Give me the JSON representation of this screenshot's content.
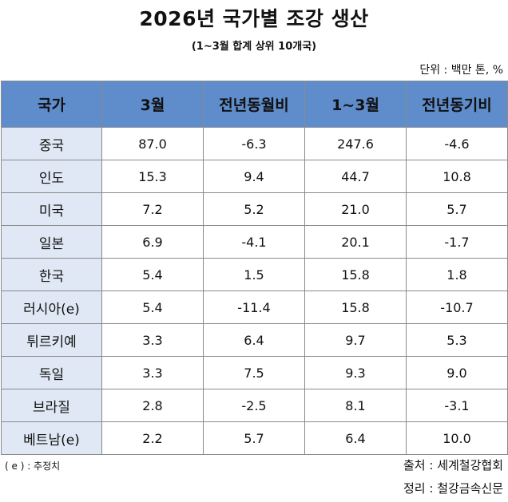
{
  "title": "2026년 국가별 조강 생산",
  "subtitle": "(1~3월 합계 상위 10개국)",
  "unit": "단위 : 백만 톤, %",
  "headers": [
    "국가",
    "3월",
    "전년동월비",
    "1~3월",
    "전년동기비"
  ],
  "rows": [
    [
      "중국",
      "87.0",
      "-6.3",
      "247.6",
      "-4.6"
    ],
    [
      "인도",
      "15.3",
      "9.4",
      "44.7",
      "10.8"
    ],
    [
      "미국",
      "7.2",
      "5.2",
      "21.0",
      "5.7"
    ],
    [
      "일본",
      "6.9",
      "-4.1",
      "20.1",
      "-1.7"
    ],
    [
      "한국",
      "5.4",
      "1.5",
      "15.8",
      "1.8"
    ],
    [
      "러시아(e)",
      "5.4",
      "-11.4",
      "15.8",
      "-10.7"
    ],
    [
      "튀르키예",
      "3.3",
      "6.4",
      "9.7",
      "5.3"
    ],
    [
      "독일",
      "3.3",
      "7.5",
      "9.3",
      "9.0"
    ],
    [
      "브라질",
      "2.8",
      "-2.5",
      "8.1",
      "-3.1"
    ],
    [
      "베트남(e)",
      "2.2",
      "5.7",
      "6.4",
      "10.0"
    ]
  ],
  "note": "( e ) : 추정치",
  "source": "출처 : 세계철강협회",
  "editor": "정리 : 철강금속신문",
  "colors": {
    "header_bg": "#5f8ccb",
    "country_bg": "#dfe8f4",
    "border": "#8a8a8a"
  }
}
